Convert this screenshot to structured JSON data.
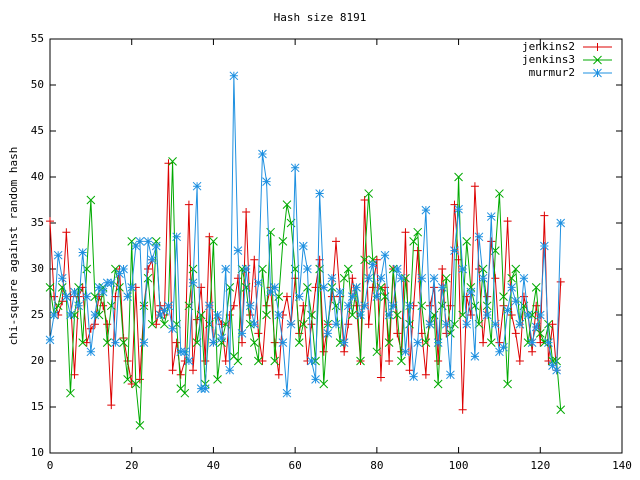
{
  "chart_data": {
    "type": "line",
    "title": "Hash size 8191",
    "y_label": "chi-square against random hash",
    "x": [
      0,
      1,
      2,
      3,
      4,
      5,
      6,
      7,
      8,
      9,
      10,
      11,
      12,
      13,
      14,
      15,
      16,
      17,
      18,
      19,
      20,
      21,
      22,
      23,
      24,
      25,
      26,
      27,
      28,
      29,
      30,
      31,
      32,
      33,
      34,
      35,
      36,
      37,
      38,
      39,
      40,
      41,
      42,
      43,
      44,
      45,
      46,
      47,
      48,
      49,
      50,
      51,
      52,
      53,
      54,
      55,
      56,
      57,
      58,
      59,
      60,
      61,
      62,
      63,
      64,
      65,
      66,
      67,
      68,
      69,
      70,
      71,
      72,
      73,
      74,
      75,
      76,
      77,
      78,
      79,
      80,
      81,
      82,
      83,
      84,
      85,
      86,
      87,
      88,
      89,
      90,
      91,
      92,
      93,
      94,
      95,
      96,
      97,
      98,
      99,
      100,
      101,
      102,
      103,
      104,
      105,
      106,
      107,
      108,
      109,
      110,
      111,
      112,
      113,
      114,
      115,
      116,
      117,
      118,
      119,
      120,
      121,
      122,
      123,
      124,
      125
    ],
    "series": [
      {
        "name": "jenkins2",
        "color": "#dd0000",
        "marker": "plus",
        "values": [
          35.2,
          27,
          25,
          26.5,
          34,
          27,
          18.5,
          27,
          28,
          22,
          23.5,
          24,
          27,
          26,
          24,
          15.2,
          27,
          30,
          22.5,
          20,
          17.5,
          28,
          18,
          26,
          30,
          31,
          24,
          26,
          25,
          41.5,
          19,
          22,
          18.5,
          20,
          37,
          19,
          24.5,
          28,
          20,
          33.5,
          22,
          25,
          24,
          20,
          25,
          26,
          29,
          22,
          36.2,
          25,
          31,
          23,
          20,
          26,
          28,
          22,
          18.5,
          25,
          27,
          24,
          29,
          23,
          26,
          20,
          24,
          28,
          31,
          21,
          24,
          27,
          33,
          27,
          21,
          24,
          29,
          26,
          20,
          37.5,
          24,
          28,
          31,
          18.2,
          28,
          20,
          30,
          23,
          21,
          34,
          19,
          26,
          32,
          23,
          18.5,
          26,
          28,
          20,
          30,
          23,
          26,
          37,
          31,
          14.7,
          27,
          25,
          39,
          30,
          22,
          27,
          33,
          29,
          22,
          26,
          35.2,
          25,
          23,
          20,
          27,
          25,
          21,
          26,
          22,
          35.8,
          20,
          24,
          19,
          28.6
        ]
      },
      {
        "name": "jenkins3",
        "color": "#00aa00",
        "marker": "cross",
        "values": [
          28,
          25,
          26,
          28,
          27,
          16.5,
          25,
          28,
          22,
          30,
          37.5,
          27,
          25,
          28,
          22,
          26,
          30,
          28,
          22,
          18,
          33,
          17.5,
          13,
          26,
          29,
          24,
          33,
          25,
          24,
          26,
          41.7,
          24,
          17,
          16.5,
          26,
          30,
          22,
          25,
          17.5,
          24,
          33,
          18,
          22,
          24,
          28,
          20.5,
          20,
          30,
          28,
          24,
          22,
          20,
          30,
          25,
          34,
          20,
          27,
          33,
          37,
          35,
          30,
          22,
          24,
          28,
          25,
          20,
          30,
          17.5,
          24,
          28,
          26,
          22,
          29,
          30,
          25,
          28,
          20,
          31,
          38.2,
          31,
          21,
          28,
          27,
          22,
          30,
          25,
          20,
          29,
          24,
          33,
          34,
          26,
          22,
          24,
          25,
          17.5,
          26,
          29,
          23,
          24,
          40,
          25,
          33,
          28,
          26,
          24,
          30,
          26,
          22,
          32,
          38.2,
          27,
          17.5,
          29,
          30,
          24,
          26,
          22,
          25,
          28,
          23,
          22,
          24,
          20,
          20,
          14.7
        ]
      },
      {
        "name": "murmur2",
        "color": "#1e90e0",
        "marker": "star",
        "values": [
          22.3,
          25,
          31.5,
          29,
          27,
          25,
          27.5,
          26,
          31.8,
          27,
          21,
          25,
          28,
          27.5,
          28.5,
          28.5,
          22,
          29.5,
          30,
          27,
          28,
          32.5,
          33,
          22,
          33,
          31,
          32.5,
          25,
          25.5,
          26,
          23.5,
          33.5,
          21,
          21,
          20,
          28.5,
          39,
          17,
          17,
          26,
          22,
          25,
          22.5,
          30,
          19,
          51,
          32,
          23,
          30,
          26,
          24,
          28.5,
          42.5,
          39.5,
          27.5,
          28,
          25,
          22,
          16.5,
          24,
          41,
          27,
          32.5,
          30,
          20,
          18,
          38.2,
          28,
          23,
          29,
          24,
          27.5,
          22,
          26,
          27,
          28,
          25,
          26,
          29,
          30.5,
          27,
          29,
          31.5,
          25,
          26,
          30,
          29,
          21,
          26,
          18.3,
          22,
          29,
          36.4,
          24,
          29,
          22,
          28,
          24,
          18.5,
          32,
          36.5,
          30,
          24,
          27.5,
          20.5,
          33.5,
          29,
          25,
          35.7,
          24,
          21,
          21.5,
          25.5,
          28,
          26.5,
          24,
          29,
          25,
          22,
          23.7,
          25,
          32.5,
          22,
          19.5,
          19,
          35
        ]
      }
    ],
    "xlim": [
      0,
      140
    ],
    "xticks": [
      0,
      20,
      40,
      60,
      80,
      100,
      120,
      140
    ],
    "ylim": [
      10,
      55
    ],
    "yticks": [
      10,
      15,
      20,
      25,
      30,
      35,
      40,
      45,
      50,
      55
    ],
    "grid": false,
    "legend": "top-right"
  }
}
